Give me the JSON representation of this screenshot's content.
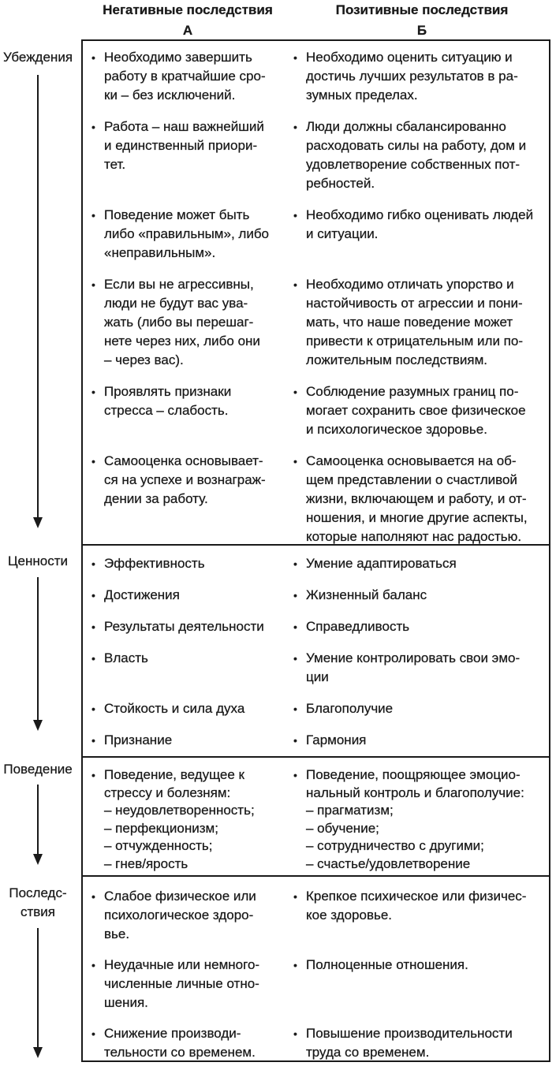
{
  "headers": {
    "a_title": "Негативные последствия",
    "a_letter": "А",
    "b_title": "Позитивные последствия",
    "b_letter": "Б"
  },
  "sections": [
    {
      "label": [
        "Убеждения"
      ],
      "rows": [
        {
          "a": [
            "Необходимо завершить",
            "работу в кратчайшие сро-",
            "ки – без исключений."
          ],
          "b": [
            "Необходимо оценить ситуацию и",
            "достичь лучших результатов в ра-",
            "зумных пределах."
          ]
        },
        {
          "a": [
            "Работа – наш важнейший",
            "и единственный приори-",
            "тет."
          ],
          "b": [
            "Люди должны сбалансированно",
            "расходовать силы на работу, дом и",
            "удовлетворение собственных пот-",
            "ребностей."
          ]
        },
        {
          "a": [
            "Поведение может быть",
            "либо «правильным», либо",
            "«неправильным»."
          ],
          "b": [
            "Необходимо гибко оценивать людей",
            "и ситуации."
          ]
        },
        {
          "a": [
            "Если вы не агрессивны,",
            "люди не будут вас ува-",
            "жать (либо вы перешаг-",
            "нете через них, либо они",
            "– через вас)."
          ],
          "b": [
            "Необходимо отличать упорство и",
            "настойчивость от агрессии и пони-",
            "мать, что наше поведение может",
            "привести к отрицательным или по-",
            "ложительным последствиям."
          ]
        },
        {
          "a": [
            "Проявлять признаки",
            "стресса – слабость."
          ],
          "b": [
            "Соблюдение разумных границ по-",
            "могает сохранить свое физическое",
            "и психологическое здоровье."
          ]
        },
        {
          "a": [
            "Самооценка основывает-",
            "ся на успехе и вознаграж-",
            "дении за работу."
          ],
          "b": [
            "Самооценка основывается на об-",
            "щем представлении о счастливой",
            "жизни, включающем и работу, и от-",
            "ношения, и многие другие аспекты,",
            "которые наполняют нас радостью."
          ]
        }
      ]
    },
    {
      "label": [
        "Ценности"
      ],
      "rows": [
        {
          "a": [
            "Эффективность"
          ],
          "b": [
            "Умение адаптироваться"
          ]
        },
        {
          "a": [
            "Достижения"
          ],
          "b": [
            "Жизненный баланс"
          ]
        },
        {
          "a": [
            "Результаты деятельности"
          ],
          "b": [
            "Справедливость"
          ]
        },
        {
          "a": [
            "Власть"
          ],
          "b": [
            "Умение контролировать свои эмо-",
            "ции"
          ]
        },
        {
          "a": [
            "Стойкость и сила духа"
          ],
          "b": [
            "Благополучие"
          ]
        },
        {
          "a": [
            "Признание"
          ],
          "b": [
            "Гармония"
          ]
        }
      ]
    },
    {
      "label": [
        "Поведение"
      ],
      "rows": [
        {
          "a": [
            "Поведение, ведущее к",
            "стрессу и болезням:",
            "– неудовлетворенность;",
            "– перфекционизм;",
            "– отчужденность;",
            "– гнев/ярость"
          ],
          "b": [
            "Поведение, поощряющее эмоцио-",
            "нальный контроль и благополучие:",
            "– прагматизм;",
            "– обучение;",
            "– сотрудничество с другими;",
            "– счастье/удовлетворение"
          ]
        }
      ]
    },
    {
      "label": [
        "Последс-",
        "ствия"
      ],
      "rows": [
        {
          "a": [
            "Слабое физическое или",
            "психологическое здоро-",
            "вье."
          ],
          "b": [
            "Крепкое психическое или физичес-",
            "кое здоровье."
          ]
        },
        {
          "a": [
            "Неудачные или немного-",
            "численные личные отно-",
            "шения."
          ],
          "b": [
            "Полноценные отношения."
          ]
        },
        {
          "a": [
            "Снижение производи-",
            "тельности со временем."
          ],
          "b": [
            "Повышение производительности",
            "труда со временем."
          ]
        }
      ]
    }
  ]
}
